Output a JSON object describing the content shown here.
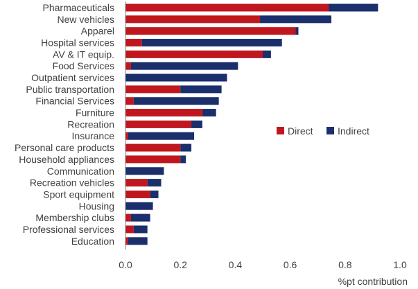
{
  "colors": {
    "direct": "#c0171f",
    "indirect": "#1a2f6b",
    "axis": "#808080",
    "text": "#404040"
  },
  "chart_data": {
    "type": "bar",
    "orientation": "horizontal",
    "stacked": true,
    "title": "",
    "xlabel": "%pt contribution",
    "ylabel": "",
    "xlim": [
      0,
      1.0
    ],
    "xticks": [
      "0.0",
      "0.2",
      "0.4",
      "0.6",
      "0.8",
      "1.0"
    ],
    "legend_position": "right",
    "grid": false,
    "categories": [
      "Pharmaceuticals",
      "New vehicles",
      "Apparel",
      "Hospital services",
      "AV & IT equip.",
      "Food Services",
      "Outpatient services",
      "Public transportation",
      "Financial Services",
      "Furniture",
      "Recreation",
      "Insurance",
      "Personal care products",
      "Household appliances",
      "Communication",
      "Recreation vehicles",
      "Sport equipment",
      "Housing",
      "Membership clubs",
      "Professional services",
      "Education"
    ],
    "series": [
      {
        "name": "Direct",
        "values": [
          0.74,
          0.49,
          0.62,
          0.06,
          0.5,
          0.02,
          0.0,
          0.2,
          0.03,
          0.28,
          0.24,
          0.01,
          0.2,
          0.2,
          0.0,
          0.08,
          0.09,
          0.0,
          0.02,
          0.03,
          0.01
        ]
      },
      {
        "name": "Indirect",
        "values": [
          0.18,
          0.26,
          0.01,
          0.51,
          0.03,
          0.39,
          0.37,
          0.15,
          0.31,
          0.05,
          0.04,
          0.24,
          0.04,
          0.02,
          0.14,
          0.05,
          0.03,
          0.1,
          0.07,
          0.05,
          0.07
        ]
      }
    ]
  }
}
